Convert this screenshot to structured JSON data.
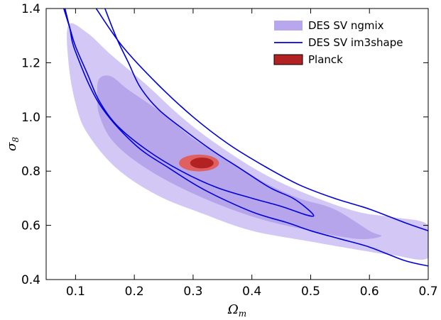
{
  "chart_data": {
    "type": "contour",
    "xlabel_main": "Ω",
    "xlabel_sub": "m",
    "ylabel_main": "σ",
    "ylabel_sub": "8",
    "xlim": [
      0.05,
      0.7
    ],
    "ylim": [
      0.4,
      1.4
    ],
    "x_ticks": [
      "0.1",
      "0.2",
      "0.3",
      "0.4",
      "0.5",
      "0.6",
      "0.7"
    ],
    "y_ticks": [
      "0.4",
      "0.6",
      "0.8",
      "1.0",
      "1.2",
      "1.4"
    ],
    "legend_position": "top-right",
    "legend": [
      {
        "label": "DES SV ngmix",
        "style": "filled",
        "color": "#b9a7ee"
      },
      {
        "label": "DES SV im3shape",
        "style": "line",
        "color": "#0000dd"
      },
      {
        "label": "Planck",
        "style": "filled",
        "color": "#b22222"
      }
    ],
    "series": [
      {
        "name": "DES SV ngmix",
        "level": "95%",
        "color": "#d3c8f5",
        "points": [
          [
            0.088,
            1.34
          ],
          [
            0.12,
            1.31
          ],
          [
            0.16,
            1.23
          ],
          [
            0.22,
            1.12
          ],
          [
            0.28,
            1.0
          ],
          [
            0.34,
            0.9
          ],
          [
            0.42,
            0.79
          ],
          [
            0.5,
            0.71
          ],
          [
            0.58,
            0.65
          ],
          [
            0.64,
            0.63
          ],
          [
            0.7,
            0.6
          ],
          [
            0.7,
            0.48
          ],
          [
            0.64,
            0.49
          ],
          [
            0.58,
            0.51
          ],
          [
            0.5,
            0.54
          ],
          [
            0.4,
            0.58
          ],
          [
            0.32,
            0.64
          ],
          [
            0.24,
            0.71
          ],
          [
            0.17,
            0.81
          ],
          [
            0.12,
            0.94
          ],
          [
            0.1,
            1.05
          ],
          [
            0.088,
            1.2
          ]
        ]
      },
      {
        "name": "DES SV ngmix",
        "level": "68%",
        "color": "#b6a5ea",
        "points": [
          [
            0.14,
            1.14
          ],
          [
            0.16,
            1.15
          ],
          [
            0.19,
            1.1
          ],
          [
            0.25,
            1.01
          ],
          [
            0.3,
            0.92
          ],
          [
            0.36,
            0.84
          ],
          [
            0.42,
            0.76
          ],
          [
            0.48,
            0.7
          ],
          [
            0.54,
            0.66
          ],
          [
            0.6,
            0.58
          ],
          [
            0.62,
            0.56
          ],
          [
            0.58,
            0.55
          ],
          [
            0.5,
            0.58
          ],
          [
            0.42,
            0.62
          ],
          [
            0.34,
            0.68
          ],
          [
            0.26,
            0.76
          ],
          [
            0.2,
            0.84
          ],
          [
            0.16,
            0.92
          ],
          [
            0.14,
            1.01
          ],
          [
            0.137,
            1.08
          ]
        ]
      },
      {
        "name": "DES SV im3shape",
        "level": "95%",
        "color": "#0000dd",
        "points": [
          [
            0.082,
            1.4
          ],
          [
            0.09,
            1.33
          ],
          [
            0.1,
            1.24
          ],
          [
            0.14,
            1.05
          ],
          [
            0.2,
            0.9
          ],
          [
            0.26,
            0.81
          ],
          [
            0.32,
            0.73
          ],
          [
            0.4,
            0.65
          ],
          [
            0.46,
            0.61
          ],
          [
            0.5,
            0.58
          ],
          [
            0.55,
            0.55
          ],
          [
            0.6,
            0.52
          ],
          [
            0.66,
            0.47
          ],
          [
            0.7,
            0.45
          ]
        ],
        "closed": false
      },
      {
        "name": "DES SV im3shape",
        "level": "95%-upper",
        "color": "#0000dd",
        "points": [
          [
            0.135,
            1.4
          ],
          [
            0.18,
            1.26
          ],
          [
            0.24,
            1.12
          ],
          [
            0.3,
            1.0
          ],
          [
            0.36,
            0.9
          ],
          [
            0.42,
            0.82
          ],
          [
            0.48,
            0.75
          ],
          [
            0.54,
            0.7
          ],
          [
            0.6,
            0.66
          ],
          [
            0.66,
            0.61
          ],
          [
            0.7,
            0.58
          ]
        ],
        "closed": false
      },
      {
        "name": "DES SV im3shape",
        "level": "68%",
        "color": "#0000dd",
        "points": [
          [
            0.08,
            1.4
          ],
          [
            0.09,
            1.33
          ],
          [
            0.1,
            1.26
          ],
          [
            0.12,
            1.16
          ],
          [
            0.14,
            1.06
          ],
          [
            0.17,
            0.97
          ],
          [
            0.22,
            0.88
          ],
          [
            0.28,
            0.8
          ],
          [
            0.34,
            0.74
          ],
          [
            0.4,
            0.7
          ],
          [
            0.45,
            0.67
          ],
          [
            0.49,
            0.64
          ],
          [
            0.505,
            0.635
          ],
          [
            0.495,
            0.66
          ],
          [
            0.47,
            0.7
          ],
          [
            0.43,
            0.74
          ],
          [
            0.38,
            0.81
          ],
          [
            0.33,
            0.88
          ],
          [
            0.28,
            0.96
          ],
          [
            0.24,
            1.03
          ],
          [
            0.21,
            1.11
          ],
          [
            0.19,
            1.2
          ],
          [
            0.17,
            1.29
          ],
          [
            0.15,
            1.4
          ]
        ],
        "closed": false
      },
      {
        "name": "Planck",
        "level": "95%",
        "color": "#e06060",
        "ellipse": {
          "cx": 0.31,
          "cy": 0.83,
          "rx": 0.034,
          "ry": 0.031
        }
      },
      {
        "name": "Planck",
        "level": "68%",
        "color": "#b22222",
        "ellipse": {
          "cx": 0.315,
          "cy": 0.83,
          "rx": 0.02,
          "ry": 0.02
        }
      }
    ]
  }
}
